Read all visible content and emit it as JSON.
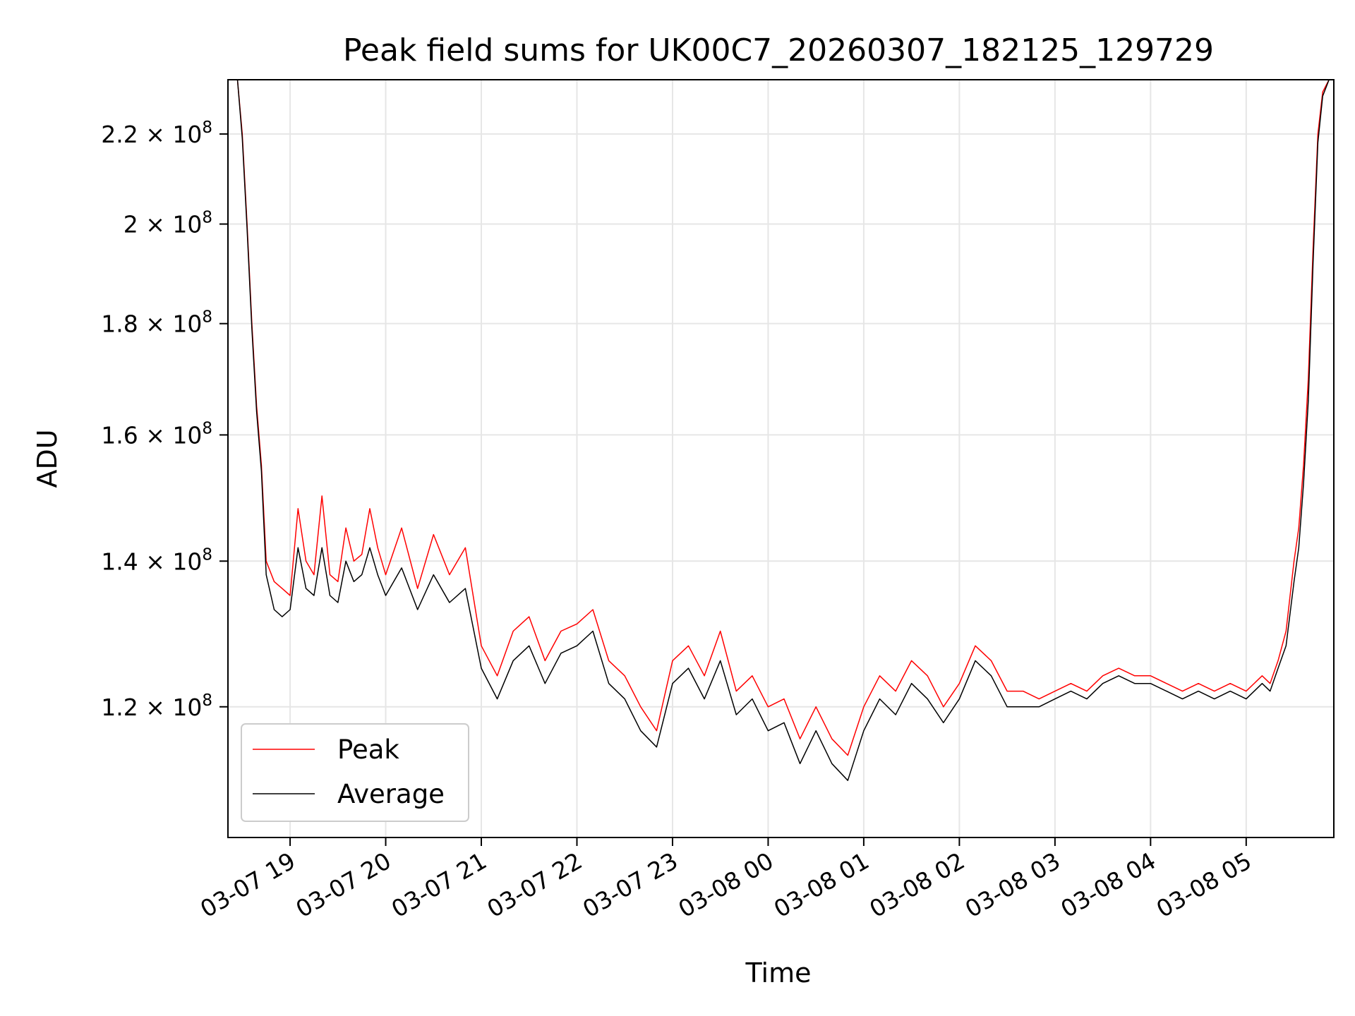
{
  "chart_data": {
    "type": "line",
    "title": "Peak field sums for UK00C7_20260307_182125_129729",
    "xlabel": "Time",
    "ylabel": "ADU",
    "y_scale": "log",
    "xlim": [
      "2026-03-07 18:21",
      "2026-03-08 05:55"
    ],
    "ylim": [
      104500000.0,
      233000000.0
    ],
    "x_ticks": [
      {
        "value": "2026-03-07 19:00",
        "label": "03-07 19"
      },
      {
        "value": "2026-03-07 20:00",
        "label": "03-07 20"
      },
      {
        "value": "2026-03-07 21:00",
        "label": "03-07 21"
      },
      {
        "value": "2026-03-07 22:00",
        "label": "03-07 22"
      },
      {
        "value": "2026-03-07 23:00",
        "label": "03-07 23"
      },
      {
        "value": "2026-03-08 00:00",
        "label": "03-08 00"
      },
      {
        "value": "2026-03-08 01:00",
        "label": "03-08 01"
      },
      {
        "value": "2026-03-08 02:00",
        "label": "03-08 02"
      },
      {
        "value": "2026-03-08 03:00",
        "label": "03-08 03"
      },
      {
        "value": "2026-03-08 04:00",
        "label": "03-08 04"
      },
      {
        "value": "2026-03-08 05:00",
        "label": "03-08 05"
      }
    ],
    "y_ticks": [
      {
        "value": 120000000,
        "mantissa": "1.2",
        "exponent": "8"
      },
      {
        "value": 140000000,
        "mantissa": "1.4",
        "exponent": "8"
      },
      {
        "value": 160000000,
        "mantissa": "1.6",
        "exponent": "8"
      },
      {
        "value": 180000000,
        "mantissa": "1.8",
        "exponent": "8"
      },
      {
        "value": 200000000,
        "mantissa": "2",
        "exponent": "8"
      },
      {
        "value": 220000000,
        "mantissa": "2.2",
        "exponent": "8"
      }
    ],
    "grid": true,
    "legend_position": "lower-left",
    "series": [
      {
        "name": "Peak",
        "color": "#ff0000",
        "x": [
          "2026-03-07 18:21",
          "2026-03-07 18:27",
          "2026-03-07 18:30",
          "2026-03-07 18:33",
          "2026-03-07 18:36",
          "2026-03-07 18:39",
          "2026-03-07 18:42",
          "2026-03-07 18:45",
          "2026-03-07 18:50",
          "2026-03-07 18:55",
          "2026-03-07 19:00",
          "2026-03-07 19:05",
          "2026-03-07 19:10",
          "2026-03-07 19:15",
          "2026-03-07 19:20",
          "2026-03-07 19:25",
          "2026-03-07 19:30",
          "2026-03-07 19:35",
          "2026-03-07 19:40",
          "2026-03-07 19:45",
          "2026-03-07 19:50",
          "2026-03-07 19:55",
          "2026-03-07 20:00",
          "2026-03-07 20:10",
          "2026-03-07 20:20",
          "2026-03-07 20:30",
          "2026-03-07 20:40",
          "2026-03-07 20:50",
          "2026-03-07 21:00",
          "2026-03-07 21:10",
          "2026-03-07 21:20",
          "2026-03-07 21:30",
          "2026-03-07 21:40",
          "2026-03-07 21:50",
          "2026-03-07 22:00",
          "2026-03-07 22:10",
          "2026-03-07 22:20",
          "2026-03-07 22:30",
          "2026-03-07 22:40",
          "2026-03-07 22:50",
          "2026-03-07 23:00",
          "2026-03-07 23:10",
          "2026-03-07 23:20",
          "2026-03-07 23:30",
          "2026-03-07 23:40",
          "2026-03-07 23:50",
          "2026-03-08 00:00",
          "2026-03-08 00:10",
          "2026-03-08 00:20",
          "2026-03-08 00:30",
          "2026-03-08 00:40",
          "2026-03-08 00:50",
          "2026-03-08 01:00",
          "2026-03-08 01:10",
          "2026-03-08 01:20",
          "2026-03-08 01:30",
          "2026-03-08 01:40",
          "2026-03-08 01:50",
          "2026-03-08 02:00",
          "2026-03-08 02:10",
          "2026-03-08 02:20",
          "2026-03-08 02:30",
          "2026-03-08 02:40",
          "2026-03-08 02:50",
          "2026-03-08 03:00",
          "2026-03-08 03:10",
          "2026-03-08 03:20",
          "2026-03-08 03:30",
          "2026-03-08 03:40",
          "2026-03-08 03:50",
          "2026-03-08 04:00",
          "2026-03-08 04:10",
          "2026-03-08 04:20",
          "2026-03-08 04:30",
          "2026-03-08 04:40",
          "2026-03-08 04:50",
          "2026-03-08 05:00",
          "2026-03-08 05:10",
          "2026-03-08 05:15",
          "2026-03-08 05:20",
          "2026-03-08 05:25",
          "2026-03-08 05:30",
          "2026-03-08 05:33",
          "2026-03-08 05:36",
          "2026-03-08 05:39",
          "2026-03-08 05:42",
          "2026-03-08 05:45",
          "2026-03-08 05:48",
          "2026-03-08 05:52",
          "2026-03-08 05:55"
        ],
        "values": [
          233000000.0,
          233000000.0,
          220000000.0,
          200000000.0,
          180000000.0,
          165000000.0,
          155000000.0,
          140000000.0,
          137000000.0,
          136000000.0,
          135000000.0,
          148000000.0,
          140000000.0,
          138000000.0,
          150000000.0,
          138000000.0,
          137000000.0,
          145000000.0,
          140000000.0,
          141000000.0,
          148000000.0,
          142000000.0,
          138000000.0,
          145000000.0,
          136000000.0,
          144000000.0,
          138000000.0,
          142000000.0,
          128000000.0,
          124000000.0,
          130000000.0,
          132000000.0,
          126000000.0,
          130000000.0,
          131000000.0,
          133000000.0,
          126000000.0,
          124000000.0,
          120000000.0,
          117000000.0,
          126000000.0,
          128000000.0,
          124000000.0,
          130000000.0,
          122000000.0,
          124000000.0,
          120000000.0,
          121000000.0,
          116000000.0,
          120000000.0,
          116000000.0,
          114000000.0,
          120000000.0,
          124000000.0,
          122000000.0,
          126000000.0,
          124000000.0,
          120000000.0,
          123000000.0,
          128000000.0,
          126000000.0,
          122000000.0,
          122000000.0,
          121000000.0,
          122000000.0,
          123000000.0,
          122000000.0,
          124000000.0,
          125000000.0,
          124000000.0,
          124000000.0,
          123000000.0,
          122000000.0,
          123000000.0,
          122000000.0,
          123000000.0,
          122000000.0,
          124000000.0,
          123000000.0,
          126000000.0,
          130000000.0,
          140000000.0,
          145000000.0,
          155000000.0,
          170000000.0,
          195000000.0,
          220000000.0,
          230000000.0,
          233000000.0,
          233000000.0
        ]
      },
      {
        "name": "Average",
        "color": "#000000",
        "x": [
          "2026-03-07 18:21",
          "2026-03-07 18:27",
          "2026-03-07 18:30",
          "2026-03-07 18:33",
          "2026-03-07 18:36",
          "2026-03-07 18:39",
          "2026-03-07 18:42",
          "2026-03-07 18:45",
          "2026-03-07 18:50",
          "2026-03-07 18:55",
          "2026-03-07 19:00",
          "2026-03-07 19:05",
          "2026-03-07 19:10",
          "2026-03-07 19:15",
          "2026-03-07 19:20",
          "2026-03-07 19:25",
          "2026-03-07 19:30",
          "2026-03-07 19:35",
          "2026-03-07 19:40",
          "2026-03-07 19:45",
          "2026-03-07 19:50",
          "2026-03-07 19:55",
          "2026-03-07 20:00",
          "2026-03-07 20:10",
          "2026-03-07 20:20",
          "2026-03-07 20:30",
          "2026-03-07 20:40",
          "2026-03-07 20:50",
          "2026-03-07 21:00",
          "2026-03-07 21:10",
          "2026-03-07 21:20",
          "2026-03-07 21:30",
          "2026-03-07 21:40",
          "2026-03-07 21:50",
          "2026-03-07 22:00",
          "2026-03-07 22:10",
          "2026-03-07 22:20",
          "2026-03-07 22:30",
          "2026-03-07 22:40",
          "2026-03-07 22:50",
          "2026-03-07 23:00",
          "2026-03-07 23:10",
          "2026-03-07 23:20",
          "2026-03-07 23:30",
          "2026-03-07 23:40",
          "2026-03-07 23:50",
          "2026-03-08 00:00",
          "2026-03-08 00:10",
          "2026-03-08 00:20",
          "2026-03-08 00:30",
          "2026-03-08 00:40",
          "2026-03-08 00:50",
          "2026-03-08 01:00",
          "2026-03-08 01:10",
          "2026-03-08 01:20",
          "2026-03-08 01:30",
          "2026-03-08 01:40",
          "2026-03-08 01:50",
          "2026-03-08 02:00",
          "2026-03-08 02:10",
          "2026-03-08 02:20",
          "2026-03-08 02:30",
          "2026-03-08 02:40",
          "2026-03-08 02:50",
          "2026-03-08 03:00",
          "2026-03-08 03:10",
          "2026-03-08 03:20",
          "2026-03-08 03:30",
          "2026-03-08 03:40",
          "2026-03-08 03:50",
          "2026-03-08 04:00",
          "2026-03-08 04:10",
          "2026-03-08 04:20",
          "2026-03-08 04:30",
          "2026-03-08 04:40",
          "2026-03-08 04:50",
          "2026-03-08 05:00",
          "2026-03-08 05:10",
          "2026-03-08 05:15",
          "2026-03-08 05:20",
          "2026-03-08 05:25",
          "2026-03-08 05:30",
          "2026-03-08 05:33",
          "2026-03-08 05:36",
          "2026-03-08 05:39",
          "2026-03-08 05:42",
          "2026-03-08 05:45",
          "2026-03-08 05:48",
          "2026-03-08 05:52",
          "2026-03-08 05:55"
        ],
        "values": [
          233000000.0,
          233000000.0,
          219000000.0,
          199000000.0,
          179000000.0,
          164000000.0,
          154000000.0,
          138000000.0,
          133000000.0,
          132000000.0,
          133000000.0,
          142000000.0,
          136000000.0,
          135000000.0,
          142000000.0,
          135000000.0,
          134000000.0,
          140000000.0,
          137000000.0,
          138000000.0,
          142000000.0,
          138000000.0,
          135000000.0,
          139000000.0,
          133000000.0,
          138000000.0,
          134000000.0,
          136000000.0,
          125000000.0,
          121000000.0,
          126000000.0,
          128000000.0,
          123000000.0,
          127000000.0,
          128000000.0,
          130000000.0,
          123000000.0,
          121000000.0,
          117000000.0,
          115000000.0,
          123000000.0,
          125000000.0,
          121000000.0,
          126000000.0,
          119000000.0,
          121000000.0,
          117000000.0,
          118000000.0,
          113000000.0,
          117000000.0,
          113000000.0,
          111000000.0,
          117000000.0,
          121000000.0,
          119000000.0,
          123000000.0,
          121000000.0,
          118000000.0,
          121000000.0,
          126000000.0,
          124000000.0,
          120000000.0,
          120000000.0,
          120000000.0,
          121000000.0,
          122000000.0,
          121000000.0,
          123000000.0,
          124000000.0,
          123000000.0,
          123000000.0,
          122000000.0,
          121000000.0,
          122000000.0,
          121000000.0,
          122000000.0,
          121000000.0,
          123000000.0,
          122000000.0,
          125000000.0,
          128000000.0,
          137000000.0,
          142000000.0,
          152000000.0,
          166000000.0,
          192000000.0,
          218000000.0,
          229000000.0,
          233000000.0,
          233000000.0
        ]
      }
    ]
  }
}
